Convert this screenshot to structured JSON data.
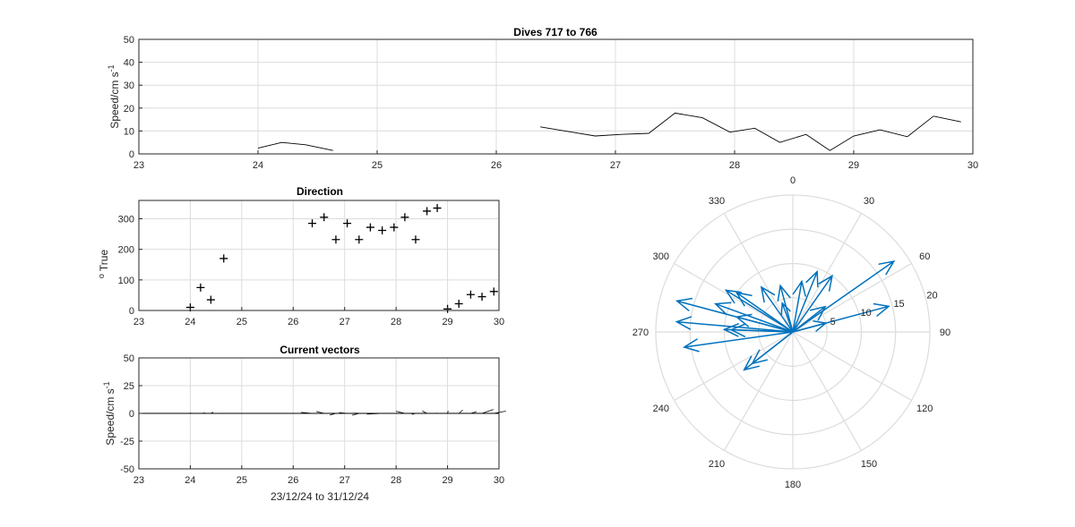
{
  "chart_data": [
    {
      "type": "line",
      "title": "Dives 717 to 766",
      "xlabel": "",
      "ylabel": "Speed/cm s",
      "ylabel_sup": "-1",
      "xlim": [
        23,
        30
      ],
      "ylim": [
        0,
        50
      ],
      "xticks": [
        "23",
        "24",
        "25",
        "26",
        "27",
        "28",
        "29",
        "30"
      ],
      "yticks": [
        "0",
        "10",
        "20",
        "30",
        "40",
        "50"
      ],
      "grid": true,
      "segments": [
        {
          "x": [
            24.0,
            24.2,
            24.4,
            24.63
          ],
          "y": [
            2.5,
            5.0,
            4.0,
            1.5
          ]
        },
        {
          "x": [
            26.37,
            26.6,
            26.83,
            27.05,
            27.28,
            27.5,
            27.73,
            27.96,
            28.17,
            28.38,
            28.6,
            28.8,
            29.0,
            29.22,
            29.45,
            29.67,
            29.9
          ],
          "y": [
            11.8,
            9.8,
            7.8,
            8.5,
            9.0,
            17.8,
            15.8,
            9.5,
            11.2,
            5.0,
            8.5,
            1.5,
            7.8,
            10.5,
            7.5,
            16.5,
            14.0
          ]
        }
      ],
      "color": "#000000"
    },
    {
      "type": "scatter",
      "title": "Direction",
      "xlabel": "",
      "ylabel": "True",
      "ylabel_sup": "o",
      "xlim": [
        23,
        30
      ],
      "ylim": [
        0,
        360
      ],
      "xticks": [
        "23",
        "24",
        "25",
        "26",
        "27",
        "28",
        "29",
        "30"
      ],
      "yticks": [
        "0",
        "100",
        "200",
        "300"
      ],
      "grid": true,
      "marker": "+",
      "points": [
        [
          24.0,
          10
        ],
        [
          24.2,
          75
        ],
        [
          24.4,
          35
        ],
        [
          24.65,
          170
        ],
        [
          26.37,
          285
        ],
        [
          26.6,
          305
        ],
        [
          26.83,
          232
        ],
        [
          27.05,
          285
        ],
        [
          27.28,
          232
        ],
        [
          27.5,
          272
        ],
        [
          27.73,
          262
        ],
        [
          27.96,
          272
        ],
        [
          28.17,
          305
        ],
        [
          28.38,
          232
        ],
        [
          28.6,
          325
        ],
        [
          28.8,
          335
        ],
        [
          29.0,
          5
        ],
        [
          29.22,
          22
        ],
        [
          29.45,
          52
        ],
        [
          29.67,
          45
        ],
        [
          29.9,
          62
        ]
      ]
    },
    {
      "type": "line",
      "title": "Current vectors",
      "xlabel": "23/12/24 to 31/12/24",
      "ylabel": "Speed/cm s",
      "ylabel_sup": "-1",
      "xlim": [
        23,
        30
      ],
      "ylim": [
        -50,
        50
      ],
      "xticks": [
        "23",
        "24",
        "25",
        "26",
        "27",
        "28",
        "29",
        "30"
      ],
      "yticks": [
        "-50",
        "-25",
        "0",
        "25",
        "50"
      ],
      "grid": true,
      "color": "#000000"
    },
    {
      "type": "scatter",
      "subtype": "compass",
      "title": "",
      "rmax": 20,
      "rticks": [
        "5",
        "10",
        "15",
        "20"
      ],
      "theta_ticks": [
        "0",
        "30",
        "60",
        "90",
        "120",
        "150",
        "180",
        "210",
        "240",
        "270",
        "300",
        "330"
      ],
      "color": "#0072BD",
      "vectors": [
        {
          "dir": 75,
          "speed": 14.5
        },
        {
          "dir": 55,
          "speed": 18.0
        },
        {
          "dir": 35,
          "speed": 10.0
        },
        {
          "dir": 10,
          "speed": 7.5
        },
        {
          "dir": 75,
          "speed": 5.0
        },
        {
          "dir": 285,
          "speed": 17.5
        },
        {
          "dir": 275,
          "speed": 17.0
        },
        {
          "dir": 302,
          "speed": 11.5
        },
        {
          "dir": 305,
          "speed": 10.0
        },
        {
          "dir": 325,
          "speed": 8.0
        },
        {
          "dir": 272,
          "speed": 9.0
        },
        {
          "dir": 232,
          "speed": 9.0
        },
        {
          "dir": 232,
          "speed": 7.5
        },
        {
          "dir": 285,
          "speed": 8.5
        },
        {
          "dir": 262,
          "speed": 16.0
        },
        {
          "dir": 272,
          "speed": 10.0
        },
        {
          "dir": 340,
          "speed": 4.5
        },
        {
          "dir": 345,
          "speed": 7.0
        },
        {
          "dir": 22,
          "speed": 9.5
        },
        {
          "dir": 52,
          "speed": 6.0
        },
        {
          "dir": 290,
          "speed": 12.0
        }
      ]
    }
  ]
}
